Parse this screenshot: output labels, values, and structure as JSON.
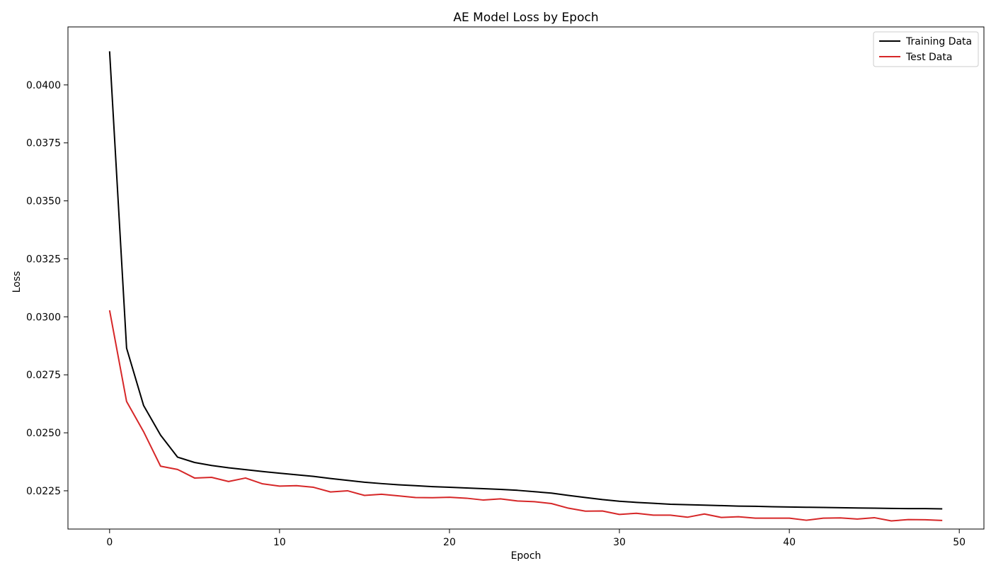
{
  "chart_data": {
    "type": "line",
    "title": "AE Model Loss by Epoch",
    "xlabel": "Epoch",
    "ylabel": "Loss",
    "xlim": [
      -2.45,
      51.45
    ],
    "ylim": [
      0.02085,
      0.0425
    ],
    "xticks": [
      0,
      10,
      20,
      30,
      40,
      50
    ],
    "xtick_labels": [
      "0",
      "10",
      "20",
      "30",
      "40",
      "50"
    ],
    "yticks": [
      0.0225,
      0.025,
      0.0275,
      0.03,
      0.0325,
      0.035,
      0.0375,
      0.04
    ],
    "ytick_labels": [
      "0.0225",
      "0.0250",
      "0.0275",
      "0.0300",
      "0.0325",
      "0.0350",
      "0.0375",
      "0.0400"
    ],
    "grid": false,
    "legend_position": "top-right",
    "x": [
      0,
      1,
      2,
      3,
      4,
      5,
      6,
      7,
      8,
      9,
      10,
      11,
      12,
      13,
      14,
      15,
      16,
      17,
      18,
      19,
      20,
      21,
      22,
      23,
      24,
      25,
      26,
      27,
      28,
      29,
      30,
      31,
      32,
      33,
      34,
      35,
      36,
      37,
      38,
      39,
      40,
      41,
      42,
      43,
      44,
      45,
      46,
      47,
      48,
      49
    ],
    "series": [
      {
        "name": "Training Data",
        "color": "#000000",
        "values": [
          0.04145,
          0.02865,
          0.02618,
          0.0249,
          0.02395,
          0.02372,
          0.02359,
          0.02349,
          0.02341,
          0.02333,
          0.02326,
          0.02319,
          0.02312,
          0.02303,
          0.02295,
          0.02287,
          0.02281,
          0.02276,
          0.02272,
          0.02268,
          0.02265,
          0.02262,
          0.02259,
          0.02256,
          0.02252,
          0.02246,
          0.0224,
          0.0223,
          0.02221,
          0.02212,
          0.02205,
          0.022,
          0.02196,
          0.02192,
          0.0219,
          0.02188,
          0.02186,
          0.02184,
          0.02183,
          0.02181,
          0.0218,
          0.02179,
          0.02178,
          0.02177,
          0.02176,
          0.02175,
          0.02174,
          0.02173,
          0.02173,
          0.02172
        ]
      },
      {
        "name": "Test Data",
        "color": "#d62728",
        "values": [
          0.03028,
          0.02635,
          0.02505,
          0.02356,
          0.02342,
          0.02305,
          0.02308,
          0.0229,
          0.02305,
          0.0228,
          0.0227,
          0.02272,
          0.02265,
          0.02245,
          0.0225,
          0.0223,
          0.02235,
          0.02228,
          0.02221,
          0.0222,
          0.02222,
          0.02218,
          0.0221,
          0.02215,
          0.02206,
          0.02203,
          0.02195,
          0.02175,
          0.02162,
          0.02163,
          0.02148,
          0.02153,
          0.02145,
          0.02145,
          0.02136,
          0.0215,
          0.02135,
          0.02138,
          0.02132,
          0.02132,
          0.02132,
          0.02123,
          0.02132,
          0.02133,
          0.02128,
          0.02134,
          0.0212,
          0.02126,
          0.02125,
          0.02122
        ]
      }
    ]
  }
}
